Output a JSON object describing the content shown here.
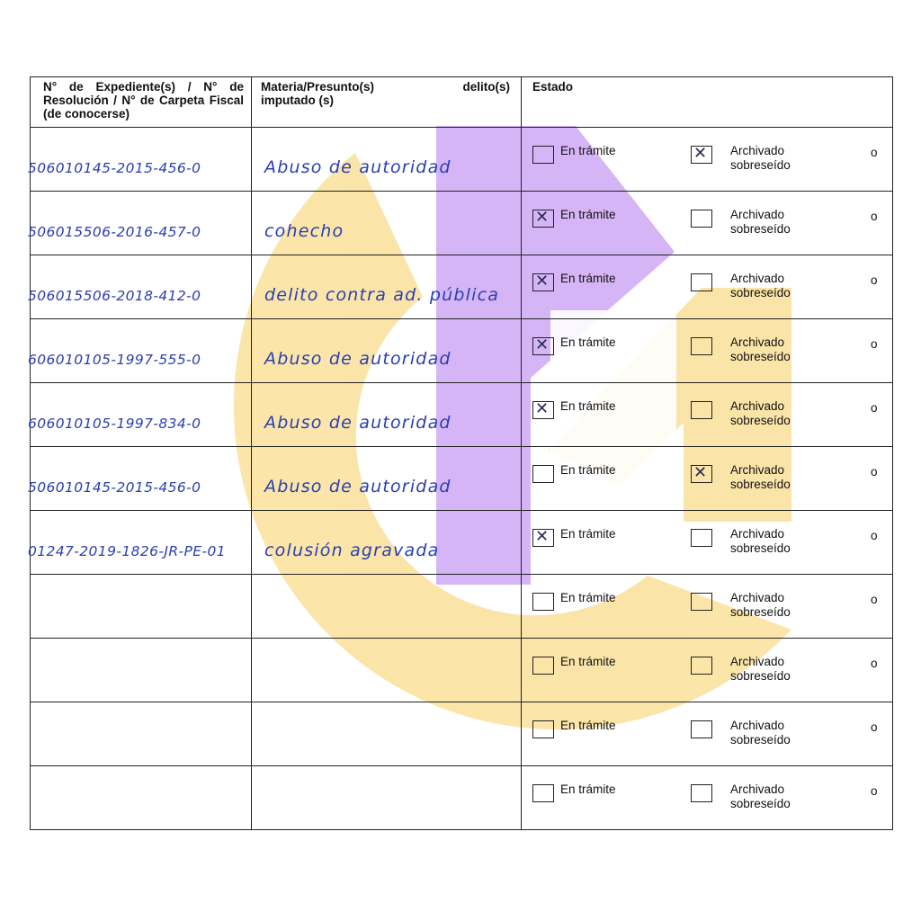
{
  "headers": {
    "col1": "N° de Expediente(s) / N° de Resolución / N° de Carpeta Fiscal (de conocerse)",
    "col2_left": "Materia/Presunto(s)",
    "col2_right": "delito(s)",
    "col2_line2": "imputado (s)",
    "col3": "Estado"
  },
  "options": {
    "en_tramite": "En trámite",
    "archivado": "Archivado",
    "sobreseido": "sobreseído",
    "o": "o"
  },
  "rows": [
    {
      "expediente": "506010145-2015-456-0",
      "materia": "Abuso de autoridad",
      "en_tramite": false,
      "archivado": true
    },
    {
      "expediente": "506015506-2016-457-0",
      "materia": "cohecho",
      "en_tramite": true,
      "archivado": false
    },
    {
      "expediente": "506015506-2018-412-0",
      "materia": "delito contra ad. pública",
      "en_tramite": true,
      "archivado": false
    },
    {
      "expediente": "606010105-1997-555-0",
      "materia": "Abuso de autoridad",
      "en_tramite": true,
      "archivado": false
    },
    {
      "expediente": "606010105-1997-834-0",
      "materia": "Abuso de autoridad",
      "en_tramite": true,
      "archivado": false
    },
    {
      "expediente": "506010145-2015-456-0",
      "materia": "Abuso de autoridad",
      "en_tramite": false,
      "archivado": true
    },
    {
      "expediente": "01247-2019-1826-JR-PE-01",
      "materia": "colusión agravada",
      "en_tramite": true,
      "archivado": false
    },
    {
      "expediente": "",
      "materia": "",
      "en_tramite": false,
      "archivado": false
    },
    {
      "expediente": "",
      "materia": "",
      "en_tramite": false,
      "archivado": false
    },
    {
      "expediente": "",
      "materia": "",
      "en_tramite": false,
      "archivado": false
    },
    {
      "expediente": "",
      "materia": "",
      "en_tramite": false,
      "archivado": false
    }
  ],
  "colors": {
    "handwriting": "#2a3fb0",
    "watermark_yellow": "#f9dc8c",
    "watermark_purple": "#c89df3"
  }
}
